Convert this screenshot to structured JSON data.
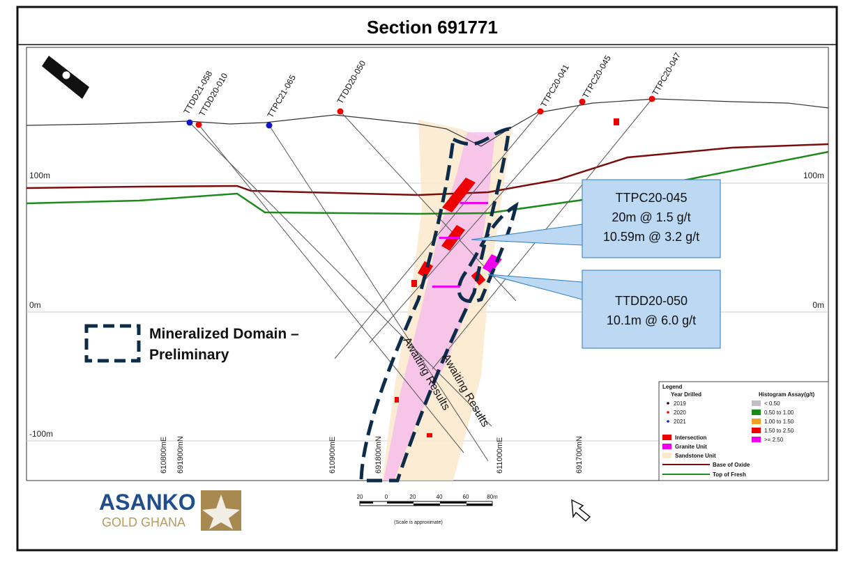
{
  "title": "Section 691771",
  "elevations": {
    "left": [
      "100m",
      "0m",
      "-100m"
    ],
    "right": [
      "100m",
      "0m"
    ]
  },
  "holes": [
    "TTDD20-010",
    "TTDD21-058",
    "TTPC21-065",
    "TTDD20-050",
    "TTPC20-041",
    "TTPC20-045",
    "TTPC20-047"
  ],
  "grid_labels": [
    "610800mE",
    "691900mN",
    "610900mE",
    "691800mN",
    "611000mE",
    "691700mN"
  ],
  "callouts": [
    {
      "title": "TTPC20-045",
      "lines": [
        "20m @ 1.5 g/t",
        "10.59m @ 3.2 g/t"
      ]
    },
    {
      "title": "TTDD20-050",
      "lines": [
        "10.1m @ 6.0 g/t"
      ]
    }
  ],
  "domain_label": [
    "Mineralized Domain –",
    "Preliminary"
  ],
  "awaiting": [
    "Awaiting Results",
    "Awaiting Results"
  ],
  "legend": {
    "title": "Legend",
    "year_title": "Year Drilled",
    "years": [
      "2019",
      "2020",
      "2021"
    ],
    "assay_title": "Histogram Assay(g/t)",
    "assays": [
      "< 0.50",
      "0.50 to 1.00",
      "1.00 to 1.50",
      "1.50 to 2.50",
      ">= 2.50"
    ],
    "units": [
      "Intersection",
      "Granite Unit",
      "Sandstone Unit",
      "Base of Oxide",
      "Top of Fresh"
    ]
  },
  "scale": {
    "ticks": [
      "20",
      "0",
      "20",
      "40",
      "60",
      "80m"
    ],
    "note": "(Scale is approximate)"
  },
  "logo": {
    "name": "ASANKO",
    "sub": "GOLD GHANA"
  }
}
